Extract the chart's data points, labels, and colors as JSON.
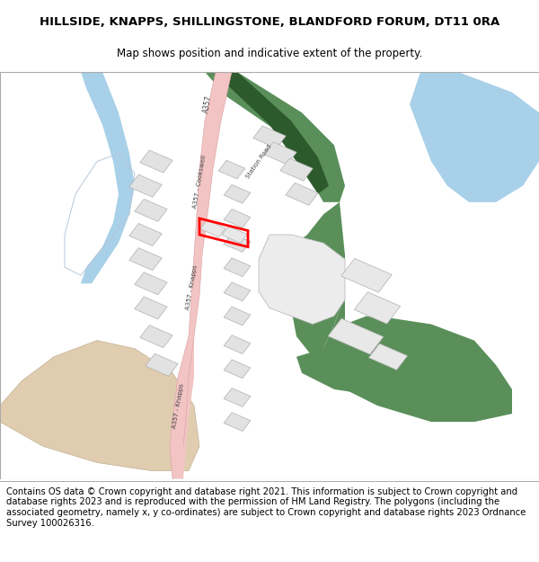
{
  "title_line1": "HILLSIDE, KNAPPS, SHILLINGSTONE, BLANDFORD FORUM, DT11 0RA",
  "title_line2": "Map shows position and indicative extent of the property.",
  "footer_text": "Contains OS data © Crown copyright and database right 2021. This information is subject to Crown copyright and database rights 2023 and is reproduced with the permission of HM Land Registry. The polygons (including the associated geometry, namely x, y co-ordinates) are subject to Crown copyright and database rights 2023 Ordnance Survey 100026316.",
  "map_bg": "#ffffff",
  "road_color": "#f2c4c4",
  "road_border_color": "#d8a0a0",
  "green_color": "#5a8f5a",
  "blue_color": "#a8d0e8",
  "building_color": "#e2e2e2",
  "building_border": "#b0b0b0",
  "highlight_color": "#ff0000",
  "tan_color": "#e0cdb0",
  "field_outline": "#c8d8c8",
  "label_color": "#444444",
  "title_fontsize": 9.5,
  "subtitle_fontsize": 8.5,
  "footer_fontsize": 7.2,
  "road_label_fontsize": 5.5
}
